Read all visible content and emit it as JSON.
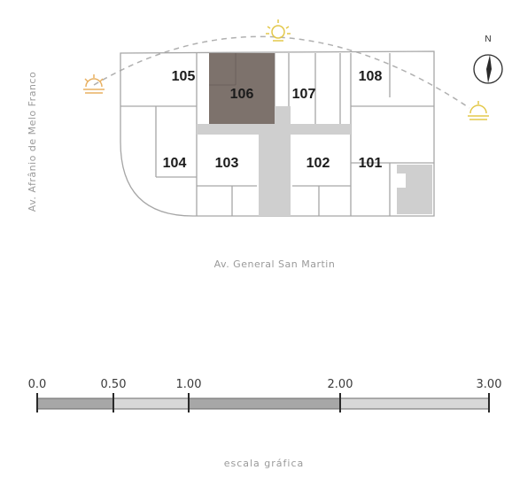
{
  "floor_plan": {
    "units": [
      "105",
      "106",
      "107",
      "108",
      "104",
      "103",
      "102",
      "101"
    ],
    "highlighted_unit": "106",
    "compass": {
      "label": "N"
    },
    "sun_icons": [
      "sunrise-icon",
      "sun-icon",
      "sunset-icon"
    ]
  },
  "streets": {
    "left": "Av. Afrânio de Melo Franco",
    "bottom": "Av. General San Martin"
  },
  "scale": {
    "ticks": [
      "0.0",
      "0.50",
      "1.00",
      "2.00",
      "3.00"
    ],
    "caption": "escala gráfica"
  },
  "colors": {
    "highlight": "#7d726c",
    "walls": "#9e9e9e",
    "common_area": "#cfcfcf",
    "sun": "#e3c84a",
    "sun_orange": "#e8b061",
    "scale_fill": "#a7a7a7"
  }
}
